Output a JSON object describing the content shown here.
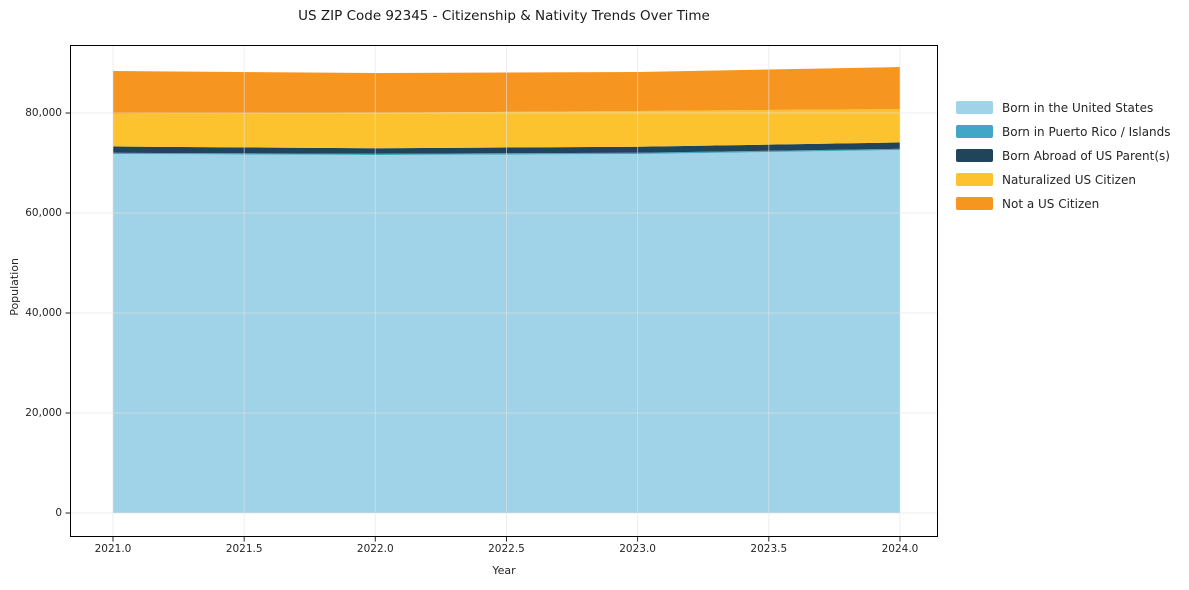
{
  "chart_data": {
    "type": "area",
    "stacked": true,
    "title": "US ZIP Code 92345 - Citizenship & Nativity Trends Over Time",
    "xlabel": "Year",
    "ylabel": "Population",
    "x": [
      2021,
      2022,
      2023,
      2024
    ],
    "series": [
      {
        "name": "Born in the United States",
        "color": "#a0d2e8",
        "values": [
          71800,
          71600,
          71800,
          72600
        ]
      },
      {
        "name": "Born in Puerto Rico / Islands",
        "color": "#42a6c6",
        "values": [
          250,
          250,
          250,
          250
        ]
      },
      {
        "name": "Born Abroad of US Parent(s)",
        "color": "#20455a",
        "values": [
          1250,
          1100,
          1200,
          1250
        ]
      },
      {
        "name": "Naturalized US Citizen",
        "color": "#fcc32e",
        "values": [
          6500,
          7100,
          7150,
          6700
        ]
      },
      {
        "name": "Not a US Citizen",
        "color": "#f6951f",
        "values": [
          8600,
          7950,
          7800,
          8400
        ]
      }
    ],
    "totals": [
      88400,
      88000,
      88200,
      89200
    ],
    "xlim": [
      2020.836,
      2024.145
    ],
    "ylim": [
      -4800,
      93600
    ],
    "x_ticks": {
      "values": [
        2021.0,
        2021.5,
        2022.0,
        2022.5,
        2023.0,
        2023.5,
        2024.0
      ],
      "labels": [
        "2021.0",
        "2021.5",
        "2022.0",
        "2022.5",
        "2023.0",
        "2023.5",
        "2024.0"
      ]
    },
    "y_ticks": {
      "values": [
        0,
        20000,
        40000,
        60000,
        80000
      ],
      "labels": [
        "0",
        "20,000",
        "40,000",
        "60,000",
        "80,000"
      ]
    },
    "grid": true,
    "legend_position": "right-of-plot"
  },
  "colors": {
    "background": "#ffffff",
    "frame": "#000000",
    "grid": "#e3e3e3",
    "tick": "#262626",
    "text": "#262626"
  }
}
